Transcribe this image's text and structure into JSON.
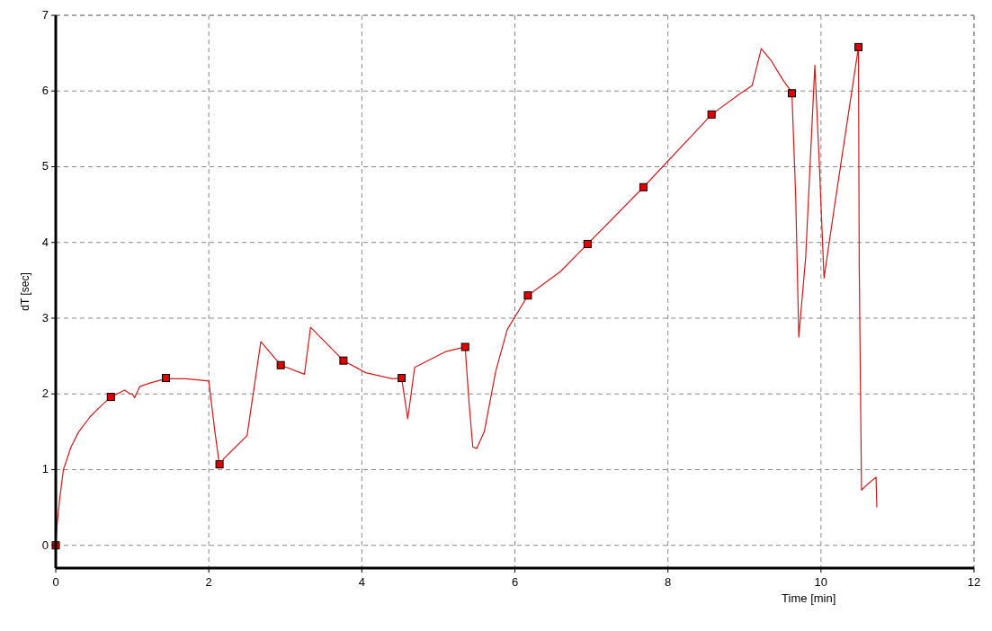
{
  "chart_data": {
    "type": "line",
    "xlabel": "Time [min]",
    "ylabel": "dT [sec]",
    "xlim": [
      0,
      12
    ],
    "ylim": [
      -0.3,
      7
    ],
    "xticks": [
      0,
      2,
      4,
      6,
      8,
      10,
      12
    ],
    "yticks": [
      0,
      1,
      2,
      3,
      4,
      5,
      6,
      7
    ],
    "grid": true,
    "legend": false,
    "series": [
      {
        "color": "#d81818",
        "marker": "none",
        "x": [
          0,
          0.02,
          0.05,
          0.1,
          0.2,
          0.3,
          0.45,
          0.6,
          0.72,
          0.9,
          0.97,
          1.0,
          1.03,
          1.1,
          1.25,
          1.44,
          1.7,
          2.0,
          2.08,
          2.14,
          2.2,
          2.5,
          2.68,
          2.94,
          3.25,
          3.33,
          3.76,
          4.05,
          4.4,
          4.52,
          4.6,
          4.69,
          5.1,
          5.35,
          5.4,
          5.45,
          5.5,
          5.6,
          5.75,
          5.9,
          6.17,
          6.6,
          6.95,
          7.68,
          8.57,
          8.95,
          9.1,
          9.22,
          9.35,
          9.5,
          9.62,
          9.67,
          9.71,
          9.8,
          9.92,
          9.98,
          10.04,
          10.18,
          10.49,
          10.5,
          10.52,
          10.53,
          10.6,
          10.72,
          10.73
        ],
        "values": [
          0.05,
          0.3,
          0.6,
          1.0,
          1.3,
          1.5,
          1.7,
          1.85,
          1.96,
          2.05,
          2.0,
          2.0,
          1.95,
          2.1,
          2.15,
          2.2,
          2.2,
          2.17,
          1.5,
          1.05,
          1.15,
          1.45,
          2.69,
          2.38,
          2.26,
          2.88,
          2.44,
          2.28,
          2.2,
          2.21,
          1.67,
          2.35,
          2.56,
          2.62,
          1.9,
          1.3,
          1.28,
          1.5,
          2.3,
          2.85,
          3.3,
          3.62,
          3.98,
          4.73,
          5.69,
          5.97,
          6.07,
          6.56,
          6.4,
          6.15,
          5.98,
          4.6,
          2.75,
          3.8,
          6.34,
          5.0,
          3.53,
          4.5,
          6.58,
          3.7,
          1.7,
          0.73,
          0.8,
          0.9,
          0.5
        ]
      },
      {
        "type": "scatter",
        "color": "#e00000",
        "marker": "square",
        "x": [
          0,
          0.72,
          1.44,
          2.14,
          2.94,
          3.76,
          4.52,
          5.35,
          6.17,
          6.95,
          7.68,
          8.57,
          9.62,
          10.49
        ],
        "values": [
          0,
          1.96,
          2.21,
          1.07,
          2.38,
          2.44,
          2.21,
          2.62,
          3.3,
          3.98,
          4.73,
          5.69,
          5.97,
          6.58
        ]
      }
    ]
  }
}
